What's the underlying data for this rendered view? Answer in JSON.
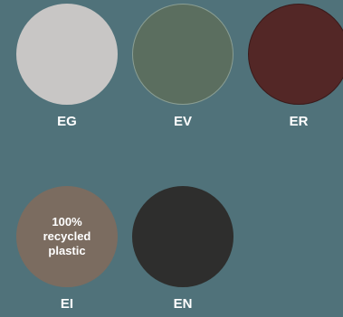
{
  "swatches": [
    {
      "code": "EG",
      "color": "#c8c6c5",
      "border": "#c8c6c5"
    },
    {
      "code": "EV",
      "color": "#5b6e5f",
      "border": "#8a9e93"
    },
    {
      "code": "ER",
      "color": "#532726",
      "border": "#3a1a1a"
    },
    {
      "code": "EI",
      "color": "#7b6c60",
      "border": "#7b6c60",
      "note": "100%\nrecycled\nplastic"
    },
    {
      "code": "EN",
      "color": "#2e2e2d",
      "border": "#2e2e2d"
    }
  ]
}
